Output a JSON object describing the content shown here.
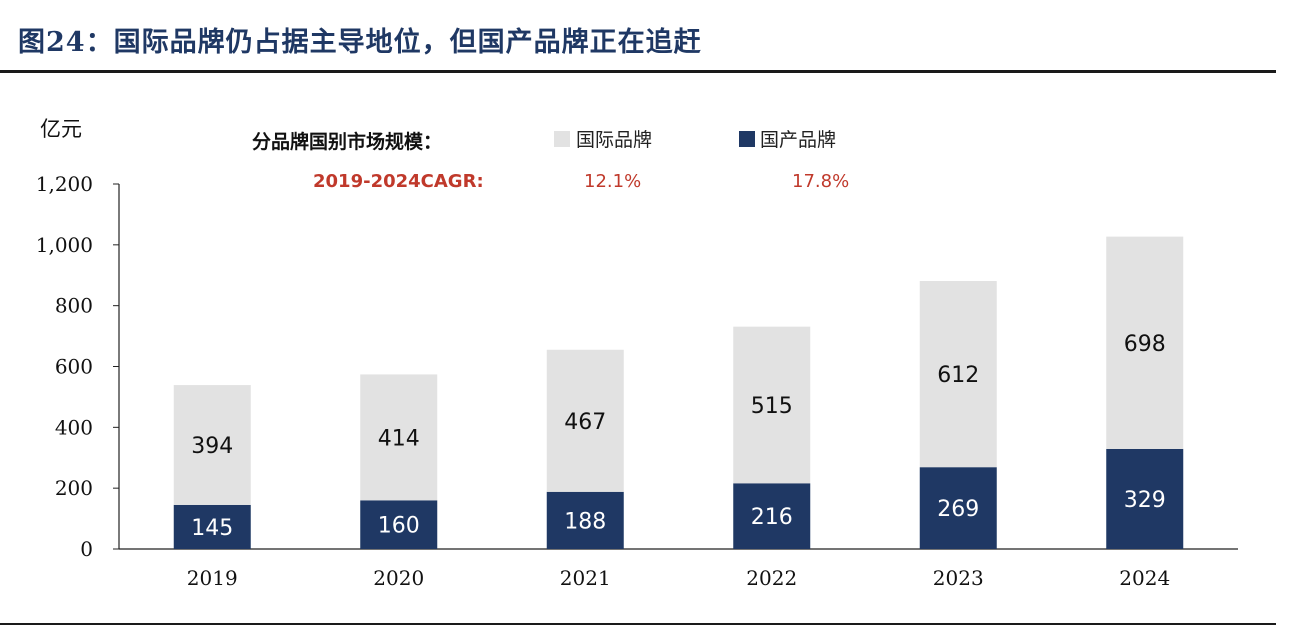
{
  "title": "图24：国际品牌仍占据主导地位，但国产品牌正在追赶",
  "colors": {
    "international": "#e2e2e2",
    "domestic": "#1f3864",
    "cagr": "#c0392b"
  },
  "chart_data": {
    "type": "bar",
    "stacked": true,
    "unit_label": "亿元",
    "categories": [
      "2019",
      "2020",
      "2021",
      "2022",
      "2023",
      "2024"
    ],
    "series": [
      {
        "name": "国产品牌",
        "values": [
          145,
          160,
          188,
          216,
          269,
          329
        ]
      },
      {
        "name": "国际品牌",
        "values": [
          394,
          414,
          467,
          515,
          612,
          698
        ]
      }
    ],
    "ylim": [
      0,
      1200
    ],
    "yticks": [
      "0",
      "200",
      "400",
      "600",
      "800",
      "1,000",
      "1,200"
    ],
    "grid": false,
    "legend": {
      "title": "分品牌国别市场规模：",
      "entries": [
        "国际品牌",
        "国产品牌"
      ],
      "placement": "top"
    },
    "cagr": {
      "label": "2019-2024CAGR:",
      "international": "12.1%",
      "domestic": "17.8%"
    }
  }
}
